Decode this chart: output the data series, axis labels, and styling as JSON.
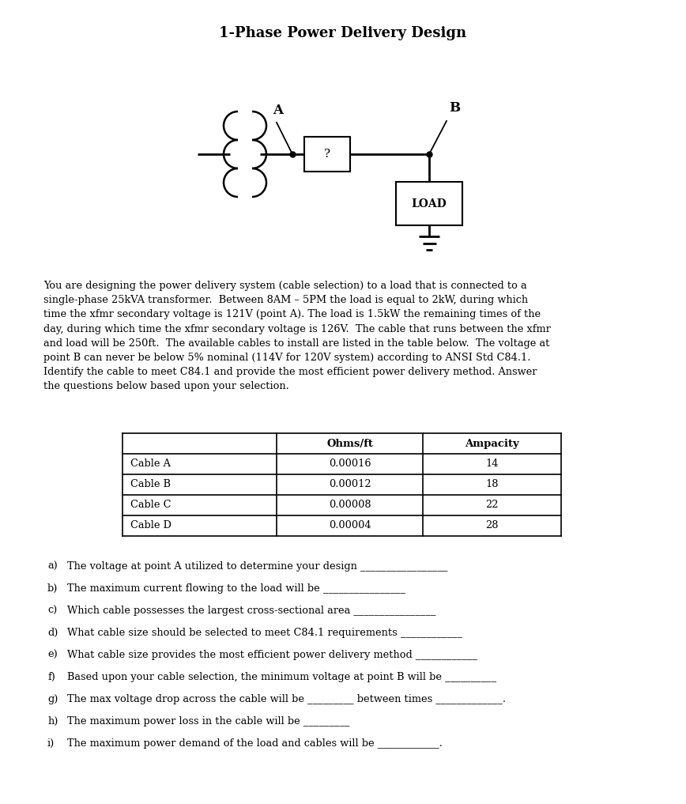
{
  "title": "1-Phase Power Delivery Design",
  "title_fontsize": 13,
  "bg_color": "#ffffff",
  "text_color": "#000000",
  "body_text": "You are designing the power delivery system (cable selection) to a load that is connected to a\nsingle-phase 25kVA transformer.  Between 8AM – 5PM the load is equal to 2kW, during which\ntime the xfmr secondary voltage is 121V (point A). The load is 1.5kW the remaining times of the\nday, during which time the xfmr secondary voltage is 126V.  The cable that runs between the xfmr\nand load will be 250ft.  The available cables to install are listed in the table below.  The voltage at\npoint B can never be below 5% nominal (114V for 120V system) according to ANSI Std C84.1.\nIdentify the cable to meet C84.1 and provide the most efficient power delivery method. Answer\nthe questions below based upon your selection.",
  "table_headers": [
    "",
    "Ohms/ft",
    "Ampacity"
  ],
  "table_rows": [
    [
      "Cable A",
      "0.00016",
      "14"
    ],
    [
      "Cable B",
      "0.00012",
      "18"
    ],
    [
      "Cable C",
      "0.00008",
      "22"
    ],
    [
      "Cable D",
      "0.00004",
      "28"
    ]
  ],
  "questions": [
    [
      "a)",
      "The voltage at point A utilized to determine your design _________________"
    ],
    [
      "b)",
      "The maximum current flowing to the load will be ________________"
    ],
    [
      "c)",
      "Which cable possesses the largest cross-sectional area ________________"
    ],
    [
      "d)",
      "What cable size should be selected to meet C84.1 requirements ____________"
    ],
    [
      "e)",
      "What cable size provides the most efficient power delivery method ____________"
    ],
    [
      "f)",
      "Based upon your cable selection, the minimum voltage at point B will be __________"
    ],
    [
      "g)",
      "The max voltage drop across the cable will be _________ between times _____________."
    ],
    [
      "h)",
      "The maximum power loss in the cable will be _________"
    ],
    [
      "i)",
      "The maximum power demand of the load and cables will be ____________."
    ]
  ]
}
